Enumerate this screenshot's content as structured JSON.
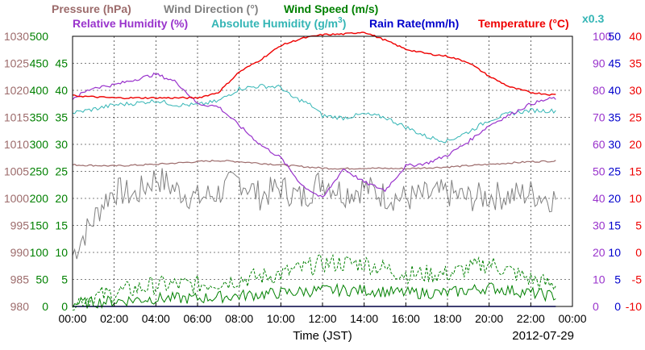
{
  "chart_data": {
    "type": "line",
    "date": "2012-07-29",
    "xlabel": "Time (JST)",
    "x_ticks": [
      "00:00",
      "02:00",
      "04:00",
      "06:00",
      "08:00",
      "10:00",
      "12:00",
      "14:00",
      "16:00",
      "18:00",
      "20:00",
      "22:00",
      "00:00"
    ],
    "legend": [
      {
        "id": "pressure",
        "text": "Pressure (hPa)",
        "color": "#9c6b6b"
      },
      {
        "id": "wind_dir",
        "text": "Wind Direction (°)",
        "color": "#808080"
      },
      {
        "id": "wind_speed",
        "text": "Wind Speed (m/s)",
        "color": "#008000"
      },
      {
        "id": "rh",
        "text": "Relative Humidity (%)",
        "color": "#9933cc"
      },
      {
        "id": "ah_pre",
        "text": "Absolute Humidity (g/m",
        "color": "#33b5b5"
      },
      {
        "id": "ah_sup",
        "text": "3",
        "color": "#33b5b5"
      },
      {
        "id": "ah_post",
        "text": ")",
        "color": "#33b5b5"
      },
      {
        "id": "rain",
        "text": "Rain Rate(mm/h)",
        "color": "#0000cc"
      },
      {
        "id": "temp",
        "text": "Temperature (°C)",
        "color": "#ee0000"
      },
      {
        "id": "x03",
        "text": "x0.3",
        "color": "#33b5b5"
      }
    ],
    "axes": {
      "pressure": {
        "color": "#9c6b6b",
        "ticks": [
          "1030",
          "1025",
          "1020",
          "1015",
          "1010",
          "1005",
          "1000",
          "995",
          "990",
          "985",
          "980"
        ]
      },
      "wind_dir_speed": {
        "color": "#008000",
        "ticks": [
          "500",
          "450",
          "400",
          "350",
          "300",
          "250",
          "200",
          "150",
          "100",
          "50",
          "0"
        ],
        "alt_ticks": [
          "45",
          "40",
          "35",
          "30",
          "25",
          "20",
          "15",
          "10",
          "5",
          "0"
        ]
      },
      "rh": {
        "color": "#9933cc",
        "ticks": [
          "100",
          "90",
          "80",
          "70",
          "60",
          "50",
          "40",
          "30",
          "20",
          "10",
          "0"
        ]
      },
      "rain": {
        "color": "#0000cc",
        "ticks": [
          "50",
          "45",
          "40",
          "35",
          "30",
          "25",
          "20",
          "15",
          "10",
          "5",
          "0"
        ]
      },
      "temp": {
        "color": "#ee0000",
        "ticks": [
          "40",
          "35",
          "30",
          "25",
          "20",
          "15",
          "10",
          "5",
          "0",
          "-5",
          "-10"
        ]
      }
    },
    "xlim_hours": [
      0,
      24
    ],
    "grid": true,
    "series": [
      {
        "key": "pressure",
        "unit": "hPa",
        "color": "#9c6b6b",
        "x": [
          0,
          2,
          4,
          6,
          7,
          8,
          10,
          12,
          13,
          14,
          16,
          18,
          20,
          22,
          23
        ],
        "values": [
          1006.2,
          1006.0,
          1006.3,
          1006.8,
          1007.0,
          1006.8,
          1006.2,
          1005.6,
          1005.5,
          1005.6,
          1005.5,
          1005.8,
          1006.3,
          1006.8,
          1006.9
        ]
      },
      {
        "key": "temperature",
        "unit": "°C",
        "color": "#ee0000",
        "x": [
          0,
          2,
          4,
          6,
          7,
          8,
          9,
          10,
          11,
          12,
          13,
          14,
          15,
          16,
          17,
          18,
          19,
          20,
          21,
          22,
          23
        ],
        "values": [
          29.0,
          28.6,
          28.6,
          28.6,
          29.6,
          33.4,
          35.6,
          38.3,
          39.6,
          40.3,
          40.4,
          40.8,
          39.3,
          37.6,
          36.8,
          36.3,
          35.2,
          32.6,
          30.6,
          29.6,
          29.2
        ]
      },
      {
        "key": "absolute_humidity_x0.3",
        "unit": "g/m3",
        "color": "#33b5b5",
        "x": [
          0,
          1,
          2,
          3,
          4,
          5,
          6,
          7,
          8,
          9,
          10,
          10.5,
          11,
          11.5,
          12,
          13,
          14,
          15,
          16,
          17,
          18,
          19,
          20,
          21,
          22,
          23
        ],
        "values": [
          71.6,
          73.0,
          74.6,
          75.2,
          76.2,
          74.6,
          74.6,
          76.0,
          80.6,
          81.6,
          81.2,
          77.6,
          76.2,
          74.2,
          70.6,
          69.8,
          71.2,
          70.0,
          66.4,
          62.8,
          61.2,
          64.6,
          69.0,
          71.4,
          72.6,
          72.4
        ]
      },
      {
        "key": "relative_humidity",
        "unit": "%",
        "color": "#9933cc",
        "x": [
          0,
          1,
          2,
          3,
          4,
          5,
          6,
          7,
          8,
          9,
          10,
          11,
          12,
          13,
          14,
          15,
          16,
          17,
          18,
          19,
          20,
          21,
          22,
          23
        ],
        "values": [
          77,
          81,
          82,
          84,
          86,
          83,
          75,
          74,
          67,
          60,
          55,
          45,
          40,
          51,
          46,
          43,
          52,
          53,
          56,
          61,
          67,
          71,
          75,
          77
        ]
      },
      {
        "key": "wind_direction",
        "unit": "°",
        "color": "#808080",
        "x": [
          0,
          0.5,
          1,
          1.5,
          2,
          3,
          4,
          5,
          6,
          7,
          8,
          9,
          10,
          11,
          12,
          13,
          14,
          15,
          16,
          17,
          18,
          19,
          20,
          21,
          22,
          23
        ],
        "values": [
          95,
          130,
          160,
          195,
          215,
          205,
          240,
          215,
          200,
          210,
          235,
          205,
          220,
          200,
          235,
          210,
          220,
          205,
          200,
          205,
          210,
          200,
          205,
          205,
          210,
          200
        ]
      },
      {
        "key": "wind_speed_mean",
        "unit": "m/s",
        "color": "#008000",
        "x": [
          0,
          2,
          4,
          6,
          8,
          10,
          12,
          14,
          16,
          18,
          20,
          22,
          23
        ],
        "values": [
          0.5,
          1.0,
          1.5,
          1.5,
          2.0,
          2.5,
          3.0,
          3.0,
          2.5,
          2.5,
          3.5,
          2.5,
          2.0
        ]
      },
      {
        "key": "wind_speed_gust",
        "unit": "m/s",
        "color": "#008000",
        "x": [
          0,
          2,
          4,
          6,
          8,
          10,
          12,
          14,
          16,
          18,
          20,
          22,
          23
        ],
        "values": [
          1.0,
          2.5,
          4.0,
          4.0,
          5.0,
          6.0,
          8.0,
          8.0,
          6.0,
          6.0,
          8.0,
          5.0,
          4.0
        ]
      },
      {
        "key": "rain_rate",
        "unit": "mm/h",
        "color": "#0000cc",
        "x": [
          0,
          24
        ],
        "values": [
          0,
          0
        ]
      }
    ]
  }
}
